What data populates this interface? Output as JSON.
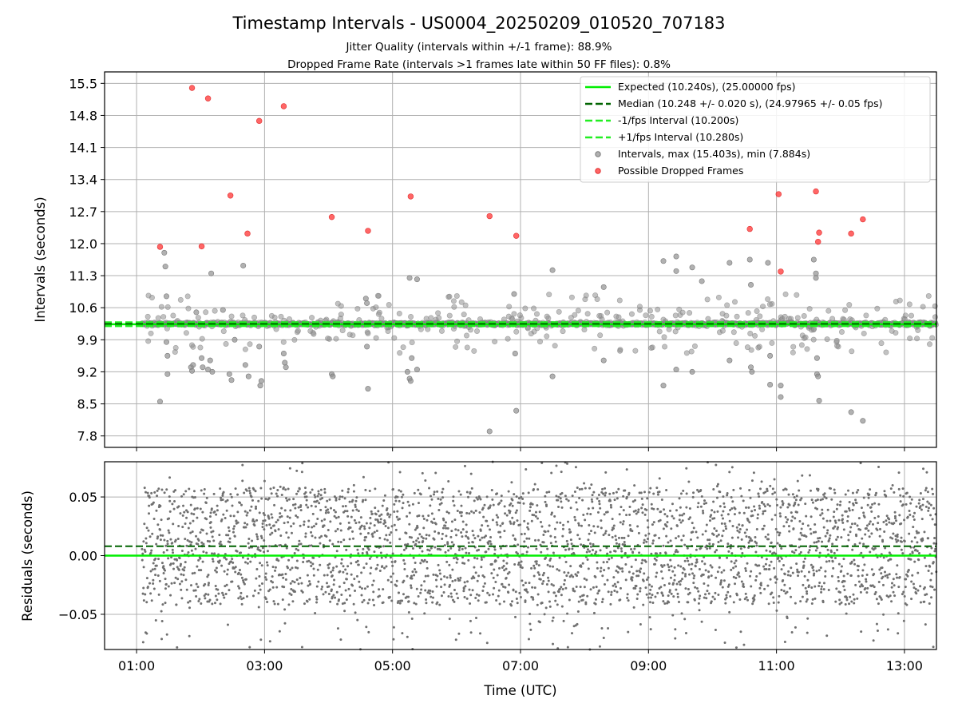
{
  "chart_data": [
    {
      "type": "scatter",
      "title": "Timestamp Intervals - US0004_20250209_010520_707183",
      "subtitle_lines": [
        "Jitter Quality (intervals within +/-1 frame): 88.9%",
        "Dropped Frame Rate (intervals >1 frames late within 50 FF files): 0.8%"
      ],
      "ylabel": "Intervals (seconds)",
      "xlim": [
        "00:30",
        "13:30"
      ],
      "ylim": [
        7.55,
        15.75
      ],
      "yticks": [
        "15.5",
        "14.8",
        "14.1",
        "13.4",
        "12.7",
        "12.0",
        "11.3",
        "10.6",
        "9.9",
        "9.2",
        "8.5",
        "7.8"
      ],
      "grid": true,
      "legend_position": "upper-right",
      "legend": [
        "Expected (10.240s), (25.00000 fps)",
        "Median (10.248 +/- 0.020 s), (24.97965 +/- 0.05 fps)",
        "-1/fps Interval (10.200s)",
        "+1/fps Interval (10.280s)",
        "Intervals, max (15.403s), min (7.884s)",
        "Possible Dropped Frames"
      ],
      "reference_lines": {
        "expected": 10.24,
        "median": 10.248,
        "minus_one_frame": 10.2,
        "plus_one_frame": 10.28
      },
      "colors": {
        "expected": "#00ee00",
        "median": "#006400",
        "interval_bounds": "#22ee22",
        "intervals": "#909090",
        "dropped": "#ff4040"
      },
      "dropped_frames": [
        {
          "x": "01:22",
          "y": 11.93
        },
        {
          "x": "01:52",
          "y": 15.4
        },
        {
          "x": "02:01",
          "y": 11.94
        },
        {
          "x": "02:07",
          "y": 15.17
        },
        {
          "x": "02:28",
          "y": 13.05
        },
        {
          "x": "02:44",
          "y": 12.22
        },
        {
          "x": "02:55",
          "y": 14.68
        },
        {
          "x": "03:18",
          "y": 15.0
        },
        {
          "x": "04:03",
          "y": 12.58
        },
        {
          "x": "04:37",
          "y": 12.28
        },
        {
          "x": "05:17",
          "y": 13.03
        },
        {
          "x": "06:31",
          "y": 12.6
        },
        {
          "x": "06:56",
          "y": 12.17
        },
        {
          "x": "10:35",
          "y": 12.32
        },
        {
          "x": "11:02",
          "y": 13.08
        },
        {
          "x": "11:04",
          "y": 11.39
        },
        {
          "x": "11:37",
          "y": 13.14
        },
        {
          "x": "11:39",
          "y": 12.04
        },
        {
          "x": "11:40",
          "y": 12.24
        },
        {
          "x": "12:10",
          "y": 12.22
        },
        {
          "x": "12:21",
          "y": 12.53
        }
      ],
      "interval_outliers": [
        {
          "x": "01:22",
          "y": 8.55
        },
        {
          "x": "01:26",
          "y": 11.8
        },
        {
          "x": "01:27",
          "y": 11.5
        },
        {
          "x": "01:28",
          "y": 10.85
        },
        {
          "x": "01:28",
          "y": 9.85
        },
        {
          "x": "01:29",
          "y": 9.55
        },
        {
          "x": "01:29",
          "y": 9.15
        },
        {
          "x": "01:51",
          "y": 9.3
        },
        {
          "x": "01:52",
          "y": 9.22
        },
        {
          "x": "01:53",
          "y": 9.35
        },
        {
          "x": "01:56",
          "y": 10.5
        },
        {
          "x": "02:01",
          "y": 9.5
        },
        {
          "x": "02:02",
          "y": 9.3
        },
        {
          "x": "02:07",
          "y": 9.25
        },
        {
          "x": "02:09",
          "y": 9.45
        },
        {
          "x": "02:10",
          "y": 11.35
        },
        {
          "x": "02:11",
          "y": 9.2
        },
        {
          "x": "02:21",
          "y": 10.55
        },
        {
          "x": "02:27",
          "y": 9.15
        },
        {
          "x": "02:29",
          "y": 9.02
        },
        {
          "x": "02:32",
          "y": 9.9
        },
        {
          "x": "02:40",
          "y": 11.52
        },
        {
          "x": "02:42",
          "y": 9.35
        },
        {
          "x": "02:45",
          "y": 9.1
        },
        {
          "x": "02:55",
          "y": 9.75
        },
        {
          "x": "02:56",
          "y": 8.9
        },
        {
          "x": "02:57",
          "y": 9.0
        },
        {
          "x": "03:18",
          "y": 9.6
        },
        {
          "x": "03:19",
          "y": 9.4
        },
        {
          "x": "03:20",
          "y": 9.3
        },
        {
          "x": "04:03",
          "y": 9.15
        },
        {
          "x": "04:04",
          "y": 9.1
        },
        {
          "x": "04:35",
          "y": 10.8
        },
        {
          "x": "04:36",
          "y": 10.7
        },
        {
          "x": "04:36",
          "y": 9.75
        },
        {
          "x": "04:37",
          "y": 8.83
        },
        {
          "x": "05:14",
          "y": 9.2
        },
        {
          "x": "05:16",
          "y": 9.05
        },
        {
          "x": "05:17",
          "y": 9.0
        },
        {
          "x": "05:18",
          "y": 9.5
        },
        {
          "x": "05:23",
          "y": 9.25
        },
        {
          "x": "05:16",
          "y": 11.25
        },
        {
          "x": "05:23",
          "y": 11.22
        },
        {
          "x": "06:31",
          "y": 7.9
        },
        {
          "x": "06:54",
          "y": 10.9
        },
        {
          "x": "06:55",
          "y": 9.6
        },
        {
          "x": "06:56",
          "y": 8.35
        },
        {
          "x": "07:30",
          "y": 11.42
        },
        {
          "x": "07:30",
          "y": 9.1
        },
        {
          "x": "08:18",
          "y": 11.05
        },
        {
          "x": "08:18",
          "y": 9.45
        },
        {
          "x": "09:14",
          "y": 8.9
        },
        {
          "x": "09:14",
          "y": 11.62
        },
        {
          "x": "09:26",
          "y": 11.72
        },
        {
          "x": "09:26",
          "y": 11.4
        },
        {
          "x": "09:26",
          "y": 9.25
        },
        {
          "x": "09:41",
          "y": 11.48
        },
        {
          "x": "09:41",
          "y": 9.2
        },
        {
          "x": "09:50",
          "y": 11.18
        },
        {
          "x": "10:16",
          "y": 11.58
        },
        {
          "x": "10:16",
          "y": 9.45
        },
        {
          "x": "10:35",
          "y": 11.65
        },
        {
          "x": "10:36",
          "y": 11.1
        },
        {
          "x": "10:36",
          "y": 9.3
        },
        {
          "x": "10:37",
          "y": 9.2
        },
        {
          "x": "10:52",
          "y": 11.58
        },
        {
          "x": "10:54",
          "y": 9.55
        },
        {
          "x": "10:54",
          "y": 8.92
        },
        {
          "x": "11:04",
          "y": 8.65
        },
        {
          "x": "11:04",
          "y": 8.9
        },
        {
          "x": "11:35",
          "y": 11.65
        },
        {
          "x": "11:37",
          "y": 11.35
        },
        {
          "x": "11:37",
          "y": 11.25
        },
        {
          "x": "11:38",
          "y": 9.5
        },
        {
          "x": "11:38",
          "y": 9.15
        },
        {
          "x": "11:39",
          "y": 9.1
        },
        {
          "x": "11:40",
          "y": 8.57
        },
        {
          "x": "12:10",
          "y": 8.32
        },
        {
          "x": "12:21",
          "y": 8.13
        }
      ]
    },
    {
      "type": "scatter",
      "ylabel": "Residuals (seconds)",
      "xlabel": "Time (UTC)",
      "xticks": [
        "01:00",
        "03:00",
        "05:00",
        "07:00",
        "09:00",
        "11:00",
        "13:00"
      ],
      "xlim": [
        "00:30",
        "13:30"
      ],
      "ylim": [
        -0.08,
        0.08
      ],
      "yticks": [
        "0.05",
        "0.00",
        "−0.05"
      ],
      "grid": true,
      "reference_lines": {
        "zero": 0.0,
        "median_offset": 0.008
      },
      "points_description": "dense residual cloud, roughly uniform within ±0.05 s"
    }
  ]
}
